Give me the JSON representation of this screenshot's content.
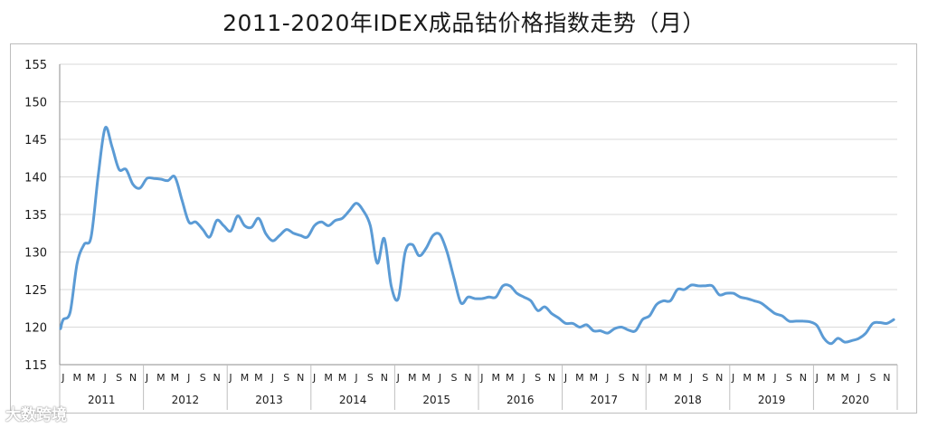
{
  "chart_data": {
    "type": "line",
    "title": "2011-2020年IDEX成品钴价格指数走势（月）",
    "xlabel": "",
    "ylabel": "",
    "ylim": [
      115,
      155
    ],
    "yticks": [
      115,
      120,
      125,
      130,
      135,
      140,
      145,
      150,
      155
    ],
    "grid": true,
    "legend": "none",
    "month_tick_labels": [
      "J",
      "M",
      "M",
      "J",
      "S",
      "N"
    ],
    "years": [
      "2011",
      "2012",
      "2013",
      "2014",
      "2015",
      "2016",
      "2017",
      "2018",
      "2019",
      "2020"
    ],
    "line_color": "#5b9bd5",
    "series": [
      {
        "x_start": "2011-01",
        "x_end": "2020-12",
        "points": [
          [
            "2011-01",
            119.8
          ],
          [
            "2011-01",
            121.0
          ],
          [
            "2011-02",
            122.0
          ],
          [
            "2011-03",
            128.5
          ],
          [
            "2011-04",
            131.0
          ],
          [
            "2011-05",
            132.0
          ],
          [
            "2011-06",
            140.0
          ],
          [
            "2011-07",
            146.5
          ],
          [
            "2011-08",
            144.0
          ],
          [
            "2011-09",
            141.0
          ],
          [
            "2011-10",
            141.0
          ],
          [
            "2011-11",
            139.0
          ],
          [
            "2011-12",
            138.5
          ],
          [
            "2012-01",
            139.8
          ],
          [
            "2012-02",
            139.8
          ],
          [
            "2012-03",
            139.7
          ],
          [
            "2012-04",
            139.5
          ],
          [
            "2012-05",
            140.0
          ],
          [
            "2012-06",
            137.0
          ],
          [
            "2012-07",
            134.0
          ],
          [
            "2012-08",
            134.0
          ],
          [
            "2012-09",
            133.0
          ],
          [
            "2012-10",
            132.0
          ],
          [
            "2012-11",
            134.2
          ],
          [
            "2012-12",
            133.5
          ],
          [
            "2013-01",
            132.8
          ],
          [
            "2013-02",
            134.8
          ],
          [
            "2013-03",
            133.5
          ],
          [
            "2013-04",
            133.3
          ],
          [
            "2013-05",
            134.5
          ],
          [
            "2013-06",
            132.5
          ],
          [
            "2013-07",
            131.5
          ],
          [
            "2013-08",
            132.2
          ],
          [
            "2013-09",
            133.0
          ],
          [
            "2013-10",
            132.5
          ],
          [
            "2013-11",
            132.2
          ],
          [
            "2013-12",
            132.0
          ],
          [
            "2014-01",
            133.5
          ],
          [
            "2014-02",
            134.0
          ],
          [
            "2014-03",
            133.5
          ],
          [
            "2014-04",
            134.2
          ],
          [
            "2014-05",
            134.5
          ],
          [
            "2014-06",
            135.5
          ],
          [
            "2014-07",
            136.5
          ],
          [
            "2014-08",
            135.5
          ],
          [
            "2014-09",
            133.5
          ],
          [
            "2014-10",
            128.5
          ],
          [
            "2014-11",
            131.8
          ],
          [
            "2014-12",
            125.5
          ],
          [
            "2015-01",
            123.8
          ],
          [
            "2015-02",
            130.0
          ],
          [
            "2015-03",
            131.0
          ],
          [
            "2015-04",
            129.5
          ],
          [
            "2015-05",
            130.5
          ],
          [
            "2015-06",
            132.2
          ],
          [
            "2015-07",
            132.3
          ],
          [
            "2015-08",
            130.0
          ],
          [
            "2015-09",
            126.5
          ],
          [
            "2015-10",
            123.2
          ],
          [
            "2015-11",
            124.0
          ],
          [
            "2015-12",
            123.8
          ],
          [
            "2016-01",
            123.8
          ],
          [
            "2016-02",
            124.0
          ],
          [
            "2016-03",
            124.0
          ],
          [
            "2016-04",
            125.5
          ],
          [
            "2016-05",
            125.5
          ],
          [
            "2016-06",
            124.5
          ],
          [
            "2016-07",
            124.0
          ],
          [
            "2016-08",
            123.5
          ],
          [
            "2016-09",
            122.2
          ],
          [
            "2016-10",
            122.7
          ],
          [
            "2016-11",
            121.8
          ],
          [
            "2016-12",
            121.2
          ],
          [
            "2017-01",
            120.5
          ],
          [
            "2017-02",
            120.5
          ],
          [
            "2017-03",
            120.0
          ],
          [
            "2017-04",
            120.3
          ],
          [
            "2017-05",
            119.5
          ],
          [
            "2017-06",
            119.5
          ],
          [
            "2017-07",
            119.2
          ],
          [
            "2017-08",
            119.8
          ],
          [
            "2017-09",
            120.0
          ],
          [
            "2017-10",
            119.6
          ],
          [
            "2017-11",
            119.5
          ],
          [
            "2017-12",
            121.0
          ],
          [
            "2018-01",
            121.5
          ],
          [
            "2018-02",
            123.0
          ],
          [
            "2018-03",
            123.5
          ],
          [
            "2018-04",
            123.5
          ],
          [
            "2018-05",
            125.0
          ],
          [
            "2018-06",
            125.0
          ],
          [
            "2018-07",
            125.6
          ],
          [
            "2018-08",
            125.5
          ],
          [
            "2018-09",
            125.5
          ],
          [
            "2018-10",
            125.5
          ],
          [
            "2018-11",
            124.3
          ],
          [
            "2018-12",
            124.5
          ],
          [
            "2019-01",
            124.5
          ],
          [
            "2019-02",
            124.0
          ],
          [
            "2019-03",
            123.8
          ],
          [
            "2019-04",
            123.5
          ],
          [
            "2019-05",
            123.2
          ],
          [
            "2019-06",
            122.5
          ],
          [
            "2019-07",
            121.8
          ],
          [
            "2019-08",
            121.5
          ],
          [
            "2019-09",
            120.8
          ],
          [
            "2019-10",
            120.8
          ],
          [
            "2019-11",
            120.8
          ],
          [
            "2019-12",
            120.7
          ],
          [
            "2020-01",
            120.2
          ],
          [
            "2020-02",
            118.5
          ],
          [
            "2020-03",
            117.8
          ],
          [
            "2020-04",
            118.5
          ],
          [
            "2020-05",
            118.0
          ],
          [
            "2020-06",
            118.2
          ],
          [
            "2020-07",
            118.5
          ],
          [
            "2020-08",
            119.2
          ],
          [
            "2020-09",
            120.5
          ],
          [
            "2020-10",
            120.6
          ],
          [
            "2020-11",
            120.5
          ],
          [
            "2020-12",
            121.0
          ]
        ]
      }
    ]
  },
  "watermark": {
    "text": "大数跨境"
  }
}
